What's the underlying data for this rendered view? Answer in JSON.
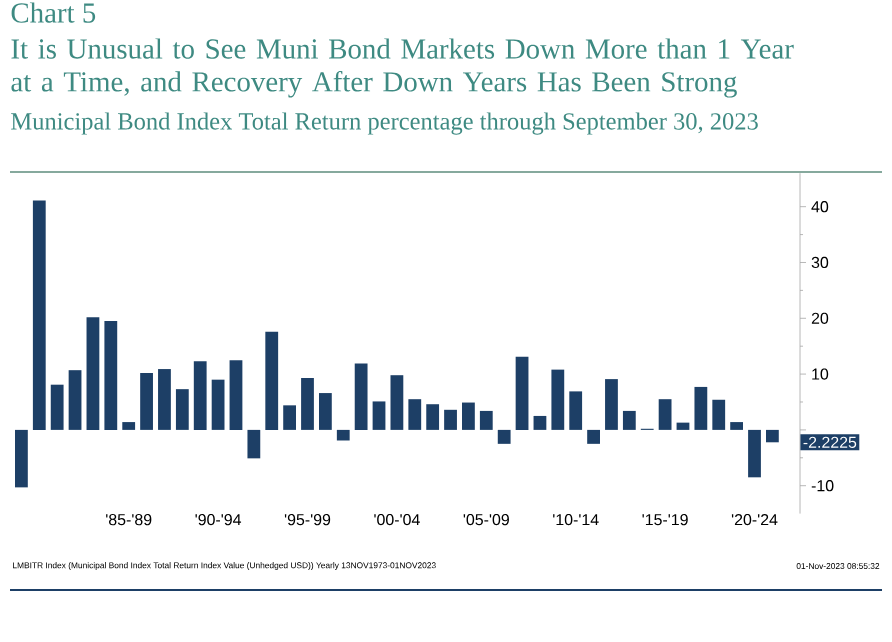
{
  "chart_data": {
    "type": "bar",
    "title": "It is Unusual to See Muni Bond Markets Down More than 1 Year at a Time, and Recovery After Down Years Has Been Strong",
    "subtitle": "Municipal Bond Index Total Return percentage through September 30, 2023",
    "annotations": [
      "Chart 5",
      "LMBITR Index (Municipal Bond Index Total Return Index Value (Unhedged USD)) Yearly 13NOV1973-01NOV2023",
      "01-Nov-2023 08:55:32",
      "-2.2225"
    ],
    "categories": [
      null,
      null,
      null,
      null,
      null,
      null,
      "'85-'89",
      null,
      null,
      null,
      null,
      "'90-'94",
      null,
      null,
      null,
      null,
      "'95-'99",
      null,
      null,
      null,
      null,
      "'00-'04",
      null,
      null,
      null,
      null,
      "'05-'09",
      null,
      null,
      null,
      null,
      "'10-'14",
      null,
      null,
      null,
      null,
      "'15-'19",
      null,
      null,
      null,
      null,
      "'20-'24",
      null
    ],
    "values": [
      -10.3,
      41.1,
      8.1,
      10.7,
      20.2,
      19.5,
      1.4,
      10.2,
      10.9,
      7.3,
      12.3,
      9.0,
      12.5,
      -5.1,
      17.6,
      4.4,
      9.3,
      6.6,
      -1.9,
      11.9,
      5.1,
      9.8,
      5.5,
      4.6,
      3.6,
      4.9,
      3.4,
      -2.5,
      13.1,
      2.5,
      10.8,
      6.9,
      -2.5,
      9.1,
      3.4,
      0.2,
      5.5,
      1.3,
      7.7,
      5.4,
      1.4,
      -8.5,
      -2.2225
    ],
    "color": "#1d3f66",
    "ylim": [
      -15,
      46
    ],
    "yticks": [
      -10,
      {
        "value": 0,
        "label": null
      },
      10,
      20,
      30,
      40
    ],
    "grid": false
  }
}
